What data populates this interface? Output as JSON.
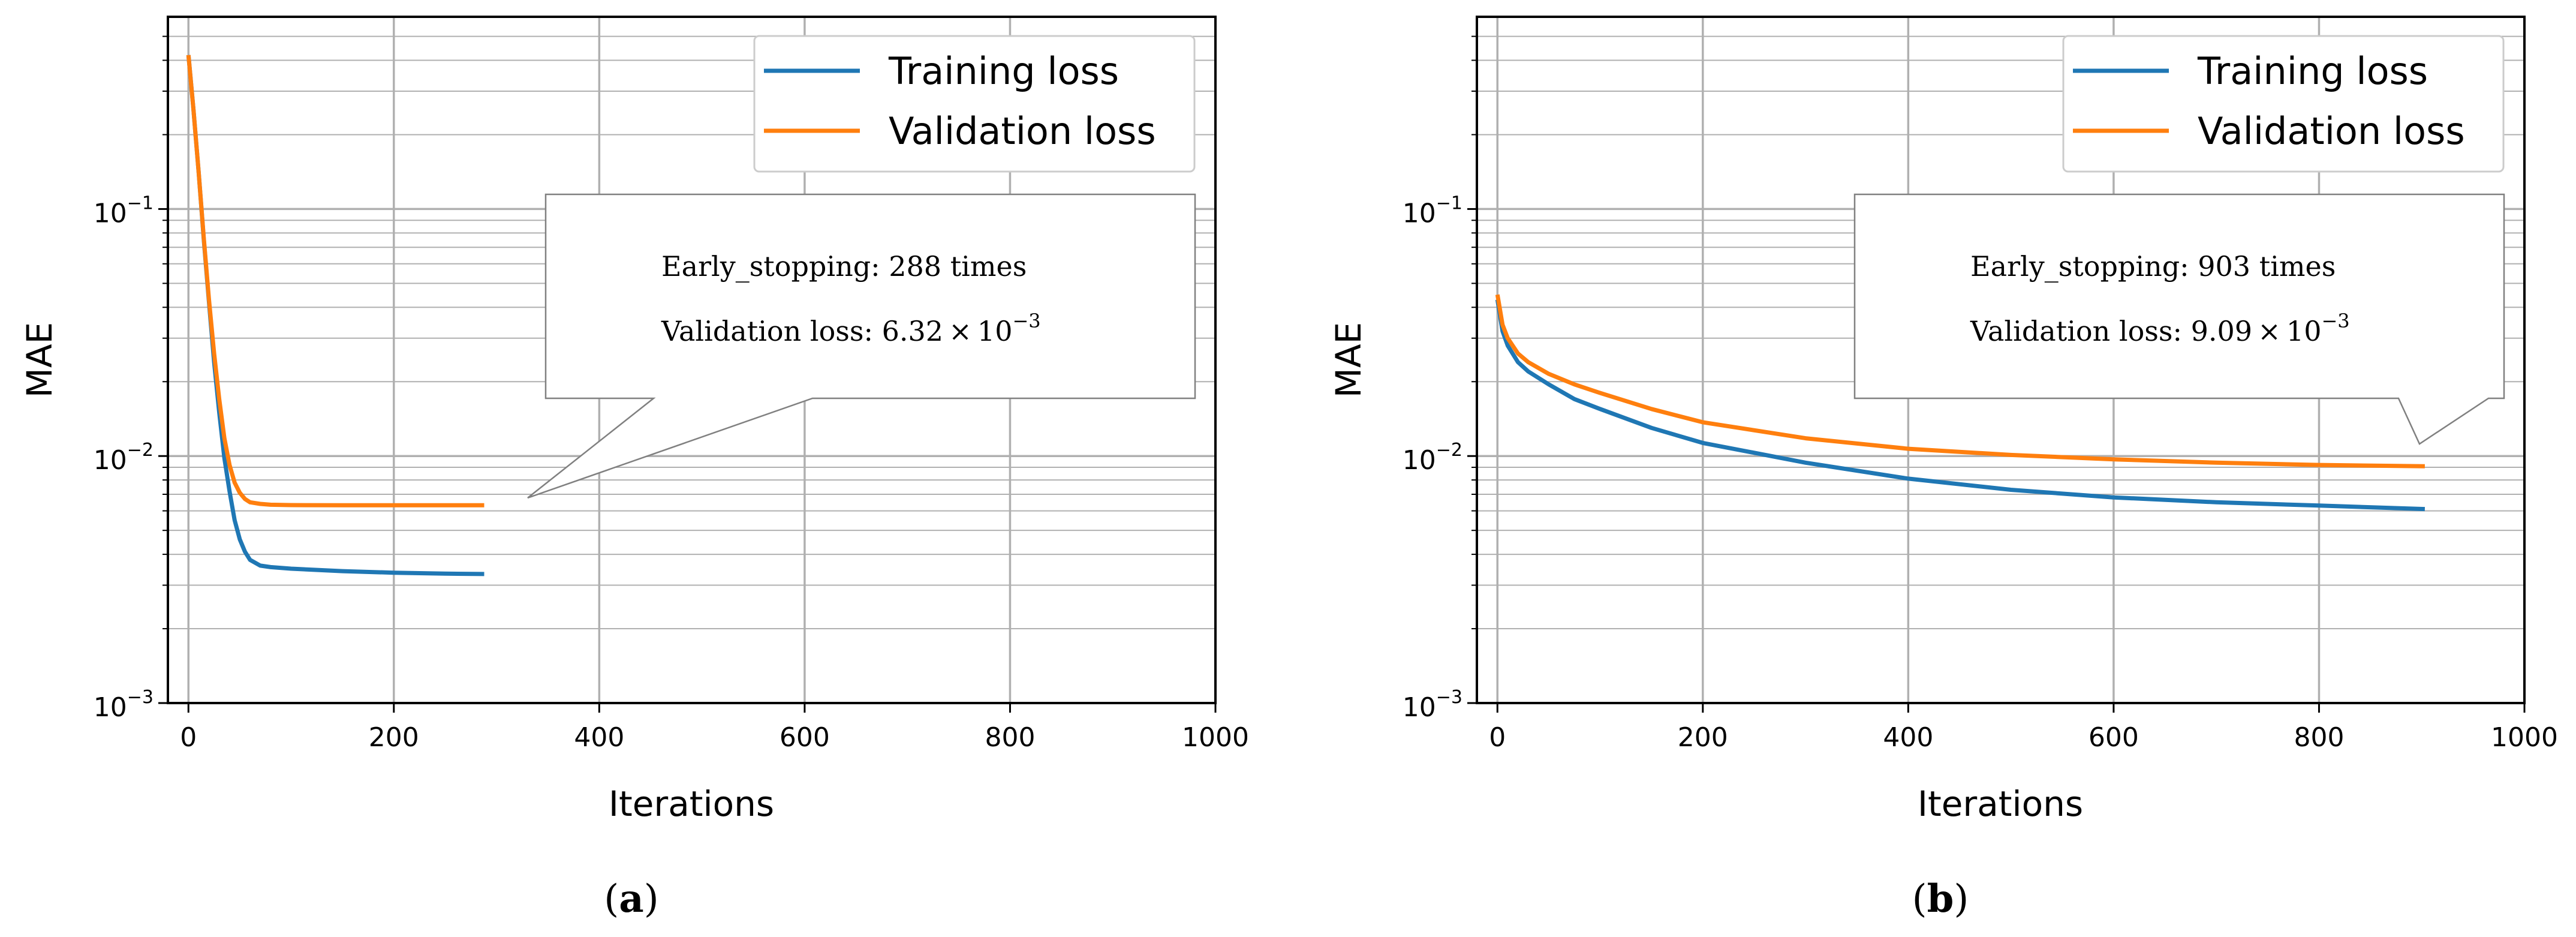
{
  "colors": {
    "training": "#1f77b4",
    "validation": "#ff7f0e",
    "grid": "#b0b0b0",
    "axis": "#000000"
  },
  "chart_data": [
    {
      "type": "line",
      "panel_label": "a",
      "xlabel": "Iterations",
      "ylabel": "MAE",
      "xlim": [
        -20,
        1000
      ],
      "ylim": [
        0.001,
        0.6
      ],
      "yscale": "log",
      "grid": true,
      "xticks": [
        "0",
        "200",
        "400",
        "600",
        "800",
        "1000"
      ],
      "yticks": [
        {
          "base": "10",
          "exp": "−3"
        },
        {
          "base": "10",
          "exp": "−2"
        },
        {
          "base": "10",
          "exp": "−1"
        }
      ],
      "legend_position": "top-right",
      "annotation": {
        "line1": "Early_stopping: 288 times",
        "line2_prefix": "Validation loss: 6.32 × 10",
        "line2_exp": "−3"
      },
      "series": [
        {
          "name": "Training loss",
          "x": [
            0,
            5,
            10,
            15,
            20,
            25,
            30,
            35,
            40,
            45,
            50,
            55,
            60,
            70,
            80,
            100,
            150,
            200,
            250,
            288
          ],
          "y": [
            0.42,
            0.25,
            0.14,
            0.075,
            0.042,
            0.024,
            0.015,
            0.0098,
            0.0072,
            0.0055,
            0.0046,
            0.0041,
            0.0038,
            0.0036,
            0.00355,
            0.0035,
            0.00342,
            0.00337,
            0.00334,
            0.00333
          ]
        },
        {
          "name": "Validation loss",
          "x": [
            0,
            5,
            10,
            15,
            20,
            25,
            30,
            35,
            40,
            45,
            50,
            55,
            60,
            70,
            80,
            100,
            150,
            200,
            250,
            288
          ],
          "y": [
            0.42,
            0.25,
            0.14,
            0.076,
            0.043,
            0.026,
            0.017,
            0.0118,
            0.0092,
            0.0078,
            0.0071,
            0.0067,
            0.0065,
            0.0064,
            0.00635,
            0.00633,
            0.00632,
            0.00632,
            0.00632,
            0.00632
          ]
        }
      ]
    },
    {
      "type": "line",
      "panel_label": "b",
      "xlabel": "Iterations",
      "ylabel": "MAE",
      "xlim": [
        -20,
        1000
      ],
      "ylim": [
        0.001,
        0.6
      ],
      "yscale": "log",
      "grid": true,
      "xticks": [
        "0",
        "200",
        "400",
        "600",
        "800",
        "1000"
      ],
      "yticks": [
        {
          "base": "10",
          "exp": "−3"
        },
        {
          "base": "10",
          "exp": "−2"
        },
        {
          "base": "10",
          "exp": "−1"
        }
      ],
      "legend_position": "top-right",
      "annotation": {
        "line1": "Early_stopping: 903 times",
        "line2_prefix": "Validation loss: 9.09 × 10",
        "line2_exp": "−3"
      },
      "series": [
        {
          "name": "Training loss",
          "x": [
            0,
            5,
            10,
            20,
            30,
            50,
            75,
            100,
            150,
            200,
            300,
            400,
            500,
            600,
            700,
            800,
            903
          ],
          "y": [
            0.043,
            0.032,
            0.028,
            0.024,
            0.022,
            0.0195,
            0.017,
            0.0155,
            0.013,
            0.0113,
            0.0094,
            0.0081,
            0.0073,
            0.0068,
            0.0065,
            0.0063,
            0.0061
          ]
        },
        {
          "name": "Validation loss",
          "x": [
            0,
            5,
            10,
            20,
            30,
            50,
            75,
            100,
            150,
            200,
            300,
            400,
            500,
            600,
            700,
            800,
            903
          ],
          "y": [
            0.045,
            0.034,
            0.03,
            0.026,
            0.024,
            0.0215,
            0.0195,
            0.018,
            0.0155,
            0.0137,
            0.0118,
            0.0107,
            0.0101,
            0.0097,
            0.0094,
            0.0092,
            0.00909
          ]
        }
      ]
    }
  ]
}
